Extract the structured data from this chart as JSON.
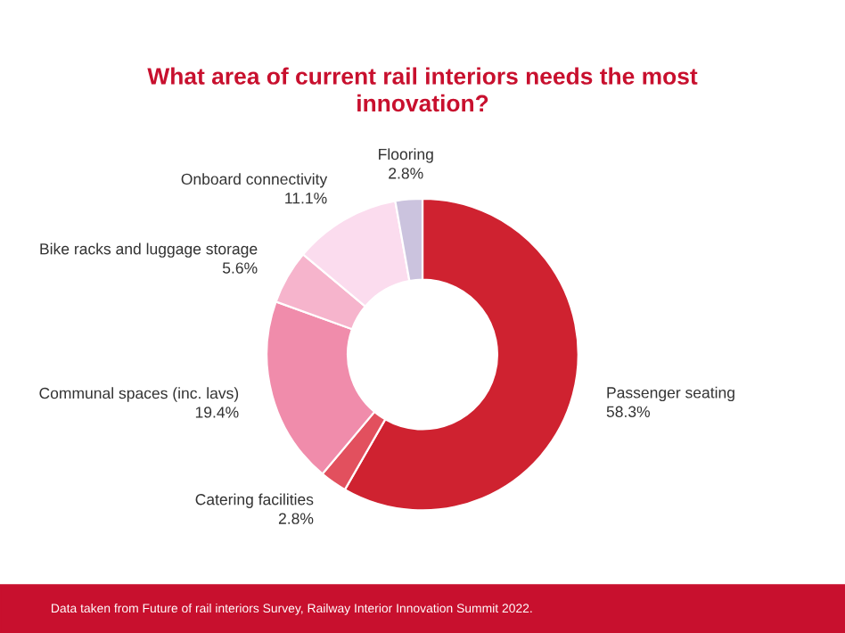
{
  "chart_data": {
    "type": "donut",
    "title": "What area of current rail interiors needs the most\ninnovation?",
    "categories": [
      "Passenger seating",
      "Catering facilities",
      "Communal spaces (inc. lavs)",
      "Bike racks and luggage storage",
      "Onboard connectivity",
      "Flooring"
    ],
    "values": [
      58.3,
      2.8,
      19.4,
      5.6,
      11.1,
      2.8
    ],
    "colors": [
      "#cf2230",
      "#e2505e",
      "#f08cab",
      "#f6b4cc",
      "#fbdcee",
      "#cbc3de"
    ],
    "value_labels": [
      "58.3%",
      "2.8%",
      "19.4%",
      "5.6%",
      "11.1%",
      "2.8%"
    ],
    "legend": false,
    "annotations": [
      "Data taken from Future of rail interiors Survey, Railway Interior Innovation Summit 2022."
    ]
  }
}
